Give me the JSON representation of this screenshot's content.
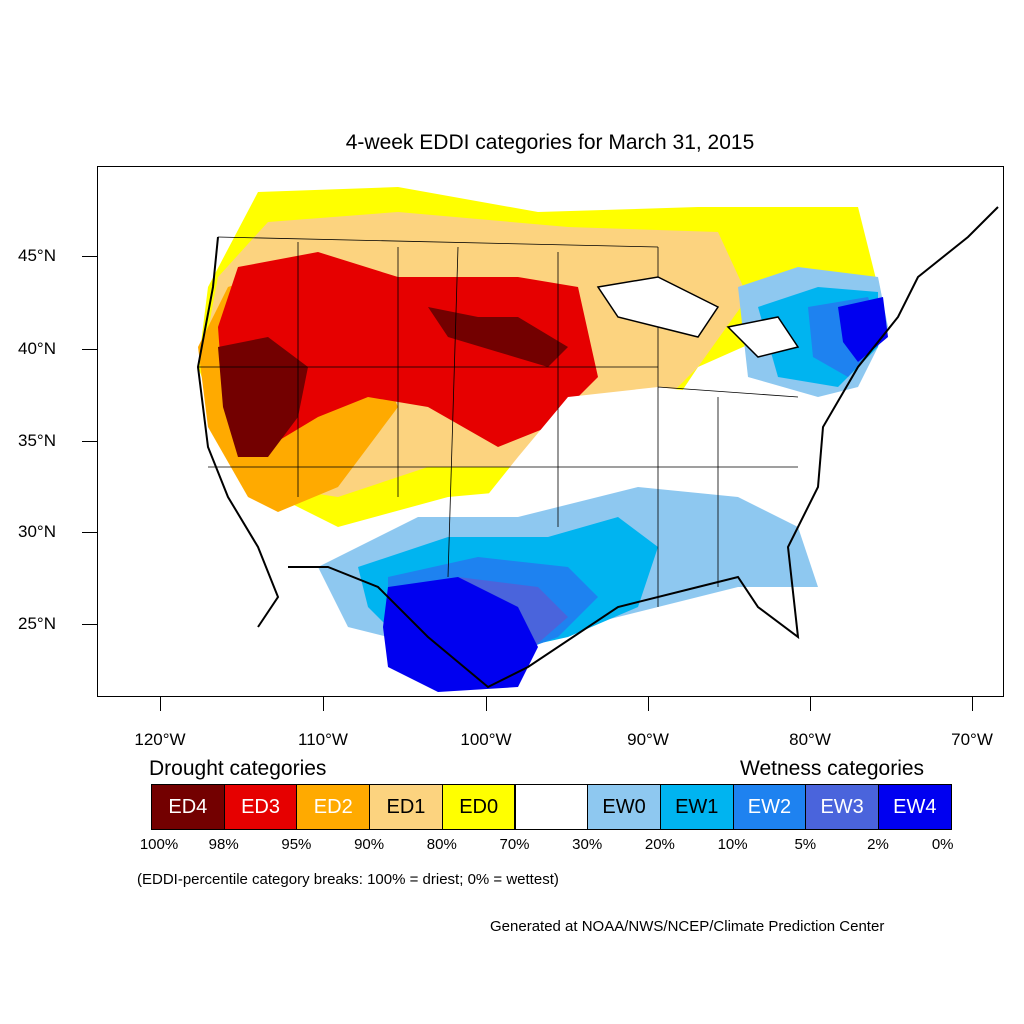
{
  "map": {
    "title": "4-week EDDI categories for March 31, 2015",
    "lat_labels": [
      "45°N",
      "40°N",
      "35°N",
      "30°N",
      "25°N"
    ],
    "lon_labels": [
      "120°W",
      "110°W",
      "100°W",
      "90°W",
      "80°W",
      "70°W"
    ]
  },
  "legend": {
    "drought_heading": "Drought categories",
    "wetness_heading": "Wetness categories",
    "categories": [
      {
        "label": "ED4",
        "color": "#730000",
        "text_color": "#ffffff"
      },
      {
        "label": "ED3",
        "color": "#e60000",
        "text_color": "#ffffff"
      },
      {
        "label": "ED2",
        "color": "#ffaa00",
        "text_color": "#ffffff"
      },
      {
        "label": "ED1",
        "color": "#fcd37f",
        "text_color": "#000000"
      },
      {
        "label": "ED0",
        "color": "#ffff00",
        "text_color": "#000000"
      },
      {
        "label": "",
        "color": "#ffffff",
        "text_color": "#000000"
      },
      {
        "label": "EW0",
        "color": "#8ec8f0",
        "text_color": "#000000"
      },
      {
        "label": "EW1",
        "color": "#00b4f0",
        "text_color": "#000000"
      },
      {
        "label": "EW2",
        "color": "#1e82f0",
        "text_color": "#ffffff"
      },
      {
        "label": "EW3",
        "color": "#4a64dc",
        "text_color": "#ffffff"
      },
      {
        "label": "EW4",
        "color": "#0000f0",
        "text_color": "#ffffff"
      }
    ],
    "breaks": [
      "100%",
      "98%",
      "95%",
      "90%",
      "80%",
      "70%",
      "30%",
      "20%",
      "10%",
      "5%",
      "2%",
      "0%"
    ],
    "note": "(EDDI-percentile category breaks: 100% = driest; 0% = wettest)"
  },
  "credit": "Generated at NOAA/NWS/NCEP/Climate Prediction Center"
}
